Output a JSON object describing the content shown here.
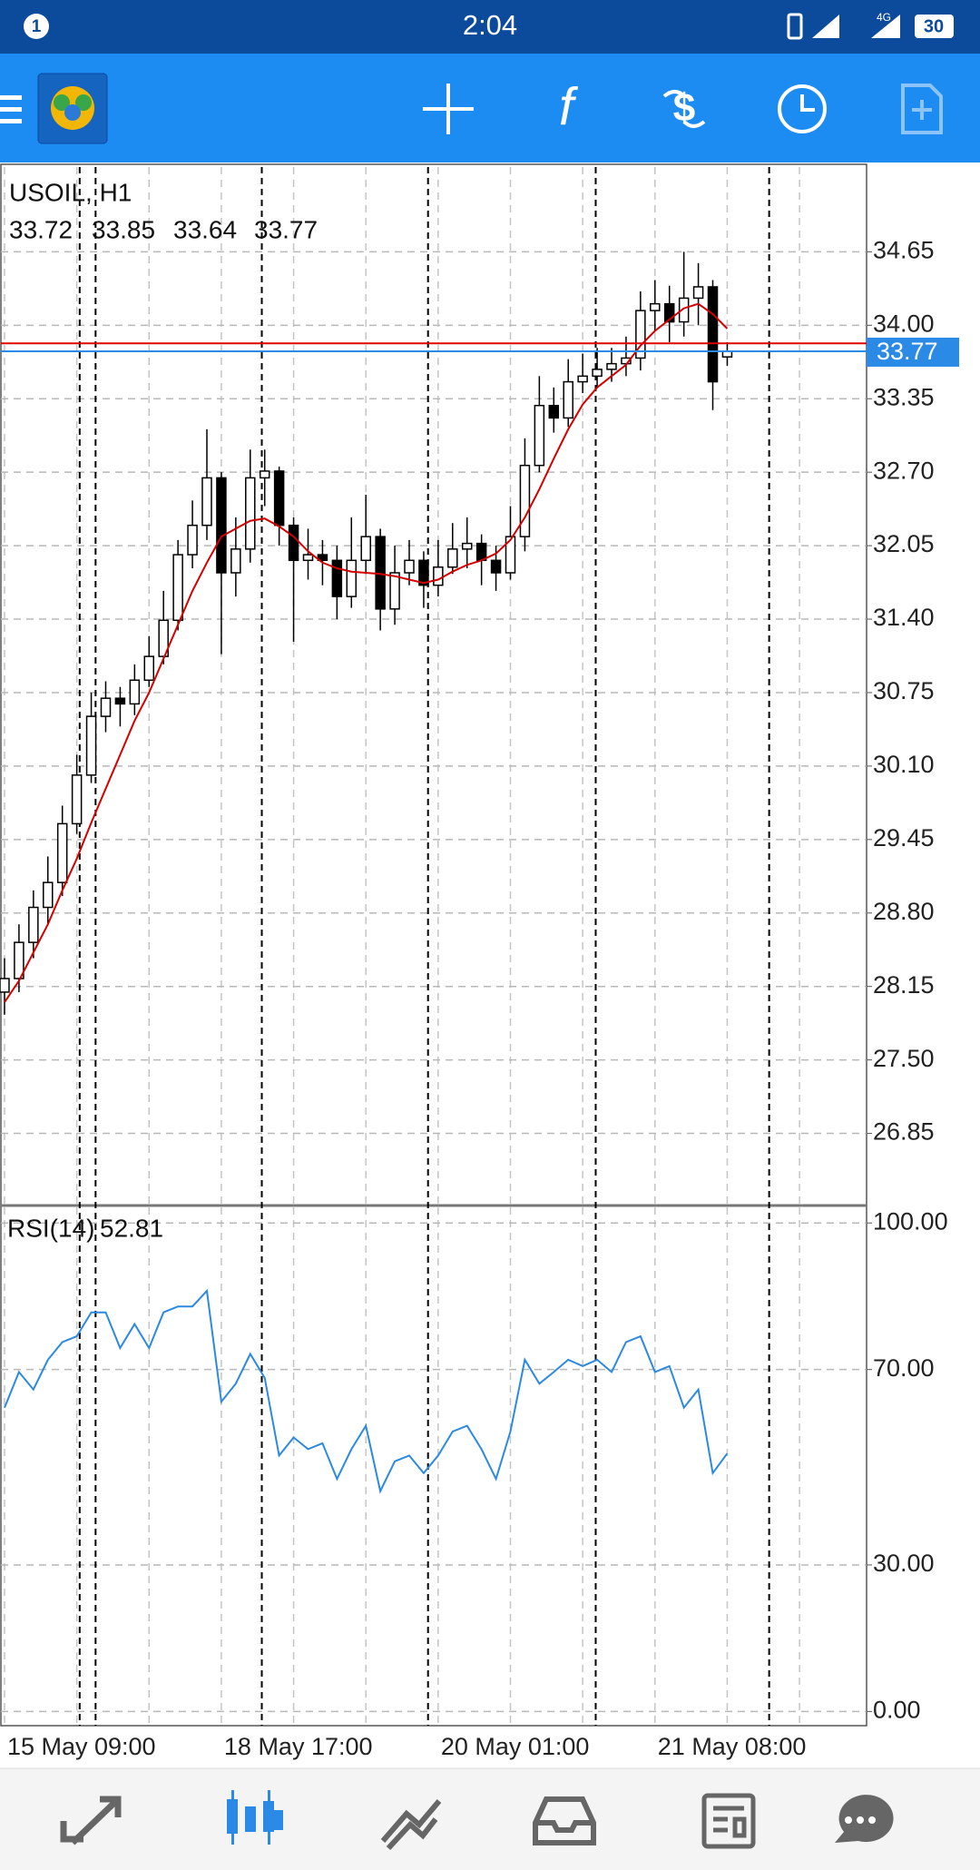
{
  "status_bar": {
    "notification_count": "1",
    "time": "2:04",
    "network": "4G",
    "battery": "30"
  },
  "chart_data": [
    {
      "type": "candlestick",
      "title": "USOIL, H1",
      "x": [
        0,
        1,
        2,
        3,
        4,
        5,
        6,
        7,
        8,
        9,
        10,
        11,
        12,
        13,
        14,
        15,
        16,
        17,
        18,
        19,
        20,
        21,
        22,
        23,
        24,
        25,
        26,
        27,
        28,
        29,
        30,
        31,
        32,
        33,
        34,
        35,
        36,
        37,
        38,
        39,
        40,
        41,
        42,
        43,
        44,
        45,
        46,
        47,
        48,
        49,
        50
      ],
      "open": [
        28.1,
        28.22,
        28.54,
        28.85,
        29.07,
        29.59,
        30.02,
        30.54,
        30.7,
        30.65,
        30.86,
        31.07,
        31.39,
        31.97,
        32.23,
        32.65,
        31.81,
        32.02,
        32.65,
        32.71,
        32.23,
        31.92,
        31.97,
        31.92,
        31.6,
        31.92,
        32.13,
        31.49,
        31.81,
        31.92,
        31.7,
        31.86,
        32.02,
        32.07,
        31.92,
        31.81,
        32.13,
        32.76,
        33.29,
        33.18,
        33.5,
        33.55,
        33.61,
        33.66,
        33.71,
        34.13,
        34.19,
        34.03,
        34.24,
        34.34,
        33.72
      ],
      "high": [
        28.4,
        28.7,
        29.0,
        29.3,
        29.75,
        30.2,
        30.75,
        30.85,
        30.8,
        31.0,
        31.25,
        31.65,
        32.1,
        32.45,
        33.08,
        32.7,
        32.3,
        32.9,
        32.9,
        32.75,
        32.3,
        32.2,
        32.1,
        32.05,
        32.3,
        32.5,
        32.2,
        32.05,
        32.1,
        32.0,
        32.1,
        32.25,
        32.3,
        32.15,
        32.05,
        32.4,
        33.0,
        33.55,
        33.45,
        33.7,
        33.75,
        33.8,
        33.8,
        33.9,
        34.3,
        34.4,
        34.35,
        34.65,
        34.55,
        34.4,
        33.85
      ],
      "low": [
        27.9,
        28.1,
        28.4,
        28.7,
        28.95,
        29.5,
        29.95,
        30.4,
        30.45,
        30.55,
        30.8,
        31.0,
        31.3,
        31.85,
        32.1,
        31.09,
        31.6,
        31.9,
        32.4,
        32.05,
        31.2,
        31.75,
        31.7,
        31.4,
        31.5,
        31.8,
        31.3,
        31.35,
        31.7,
        31.5,
        31.6,
        31.8,
        31.85,
        31.7,
        31.65,
        31.75,
        32.0,
        32.7,
        33.05,
        33.1,
        33.4,
        33.45,
        33.5,
        33.55,
        33.6,
        33.95,
        33.85,
        33.9,
        34.0,
        33.25,
        33.64
      ],
      "close": [
        28.22,
        28.54,
        28.85,
        29.07,
        29.59,
        30.02,
        30.54,
        30.7,
        30.65,
        30.86,
        31.07,
        31.39,
        31.97,
        32.23,
        32.65,
        31.81,
        32.02,
        32.65,
        32.71,
        32.23,
        31.92,
        31.97,
        31.92,
        31.6,
        31.92,
        32.13,
        31.49,
        31.81,
        31.92,
        31.7,
        31.86,
        32.02,
        32.07,
        31.92,
        31.81,
        32.13,
        32.76,
        33.29,
        33.18,
        33.5,
        33.55,
        33.61,
        33.66,
        33.71,
        34.13,
        34.19,
        34.03,
        34.24,
        34.34,
        33.5,
        33.77
      ],
      "ma": {
        "color": "#d40000",
        "values": [
          28.01,
          28.2,
          28.45,
          28.7,
          29.0,
          29.28,
          29.6,
          29.9,
          30.2,
          30.5,
          30.75,
          31.05,
          31.35,
          31.65,
          31.9,
          32.13,
          32.2,
          32.27,
          32.29,
          32.22,
          32.13,
          32.0,
          31.9,
          31.85,
          31.82,
          31.81,
          31.8,
          31.78,
          31.75,
          31.72,
          31.75,
          31.82,
          31.88,
          31.92,
          31.98,
          32.1,
          32.3,
          32.55,
          32.82,
          33.08,
          33.3,
          33.45,
          33.55,
          33.65,
          33.82,
          33.95,
          34.05,
          34.15,
          34.19,
          34.1,
          33.97
        ]
      },
      "ask": 33.84,
      "ask_color": "#e00000",
      "bid_color": "#2a8ae6",
      "separators": [
        5.2,
        6.3,
        17.8,
        29.3,
        40.9,
        52.9
      ],
      "xlim": [
        -0.25,
        59.64
      ],
      "ylim": [
        26.22,
        35.4
      ],
      "yticks": [
        26.85,
        {
          "value": 27.5,
          "label": "27.50"
        },
        28.15,
        {
          "value": 28.8,
          "label": "28.80"
        },
        29.45,
        {
          "value": 30.1,
          "label": "30.10"
        },
        30.75,
        {
          "value": 31.4,
          "label": "31.40"
        },
        32.05,
        {
          "value": 32.7,
          "label": "32.70"
        },
        33.35,
        {
          "value": 34,
          "label": "34.00"
        },
        34.65
      ],
      "grid": true
    },
    {
      "type": "line",
      "x": [
        0,
        1,
        2,
        3,
        4,
        5,
        6,
        7,
        8,
        9,
        10,
        11,
        12,
        13,
        14,
        15,
        16,
        17,
        18,
        19,
        20,
        21,
        22,
        23,
        24,
        25,
        26,
        27,
        28,
        29,
        30,
        31,
        32,
        33,
        34,
        35,
        36,
        37,
        38,
        39,
        40,
        41,
        42,
        43,
        44,
        45,
        46,
        47,
        48,
        49,
        50
      ],
      "series": [
        {
          "name": "RSI(14)",
          "color": "#2b8ae0",
          "values": [
            62.2,
            69.5,
            65.9,
            72,
            75.6,
            76.8,
            81.7,
            81.7,
            74.4,
            79.3,
            74.4,
            81.7,
            82.9,
            82.9,
            86.1,
            63.4,
            67.1,
            73.2,
            68.3,
            52.4,
            56.1,
            53.7,
            54.9,
            47.6,
            53.7,
            58.5,
            45.1,
            51.2,
            52.4,
            48.8,
            52.4,
            57.3,
            58.5,
            53.7,
            47.6,
            57.3,
            72,
            67.1,
            69.5,
            72,
            70.7,
            72,
            69.5,
            75.6,
            76.8,
            69.5,
            70.7,
            62.2,
            65.9,
            48.8,
            52.81
          ]
        }
      ],
      "xlim": [
        -0.25,
        59.64
      ],
      "ylim": [
        -2.9,
        103.2
      ],
      "yticks": [
        {
          "value": 100,
          "label": "100.00"
        },
        {
          "value": 70,
          "label": "70.00"
        },
        {
          "value": 30,
          "label": "30.00"
        },
        {
          "value": 0,
          "label": "0.00"
        }
      ],
      "xticks": [
        {
          "value": 0,
          "label": "15 May 09:00"
        },
        {
          "value": 5,
          "label": null
        },
        {
          "value": 10,
          "label": null
        },
        {
          "value": 15,
          "label": "18 May 17:00"
        },
        {
          "value": 20,
          "label": null
        },
        {
          "value": 25,
          "label": null
        },
        {
          "value": 30,
          "label": "20 May 01:00"
        },
        {
          "value": 35,
          "label": null
        },
        {
          "value": 40,
          "label": null
        },
        {
          "value": 45,
          "label": "21 May 08:00"
        },
        {
          "value": 50,
          "label": null
        },
        {
          "value": 55,
          "label": null
        }
      ],
      "grid": true
    }
  ]
}
